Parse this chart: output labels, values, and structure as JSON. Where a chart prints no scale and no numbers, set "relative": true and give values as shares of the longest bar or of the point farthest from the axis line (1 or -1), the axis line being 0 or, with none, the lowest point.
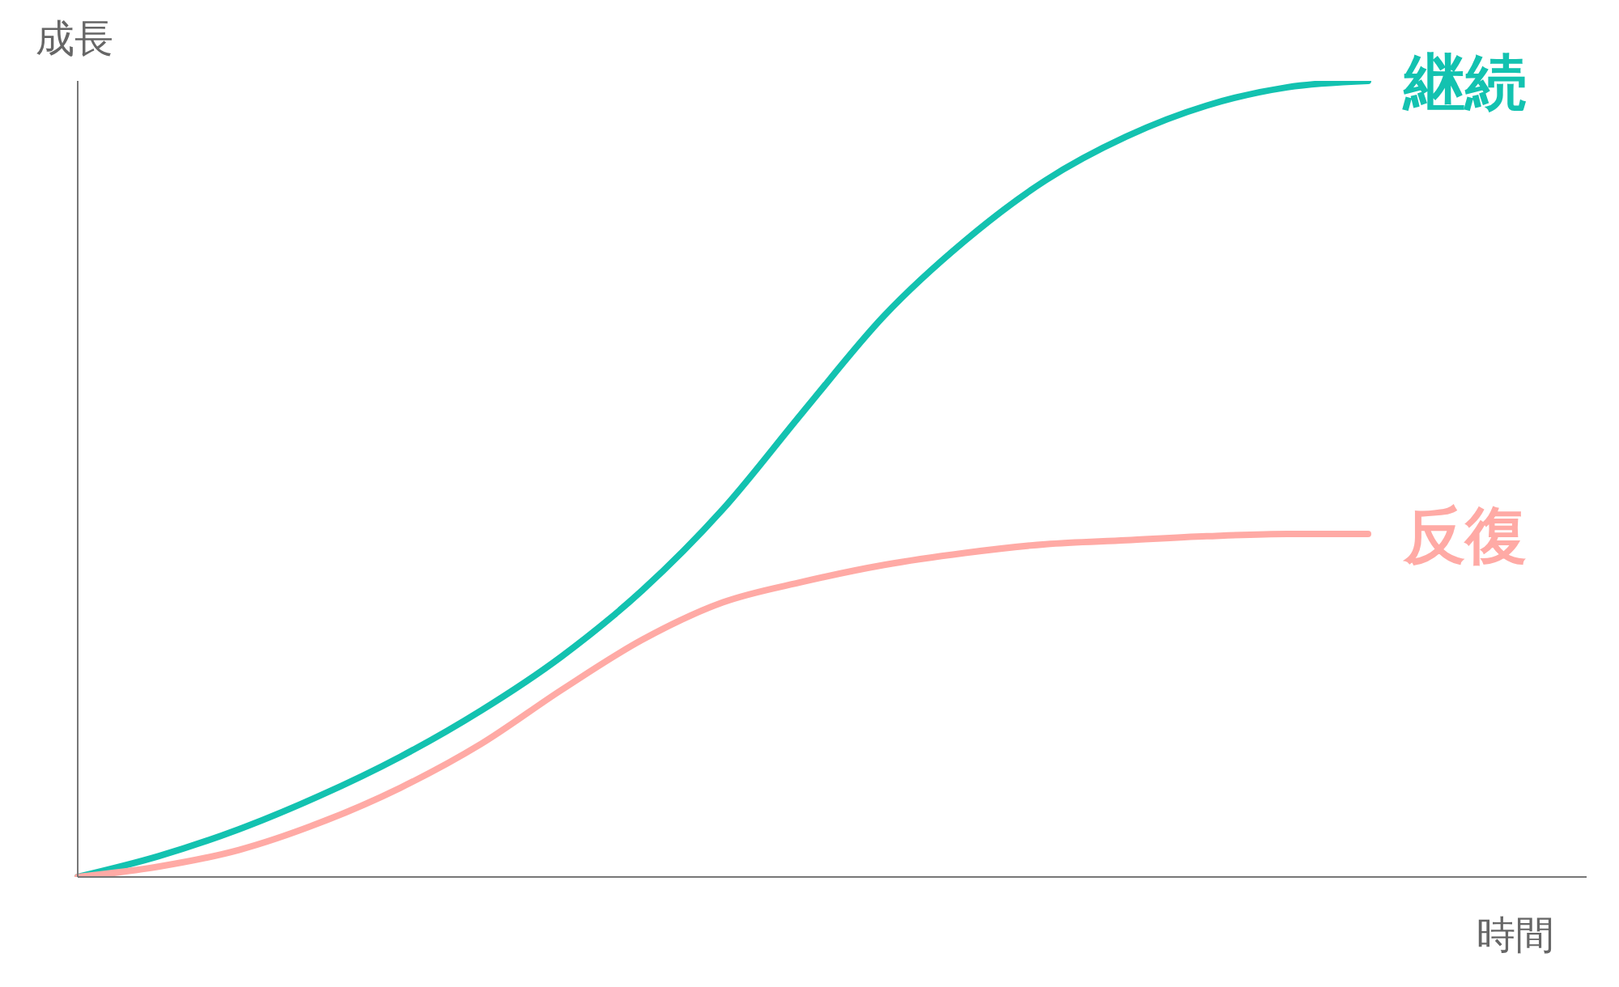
{
  "chart_data": {
    "type": "line",
    "relative": true,
    "xlabel": "時間",
    "ylabel": "成長",
    "categories": [
      null,
      null,
      null,
      null,
      null,
      null,
      null,
      null,
      null,
      null,
      null,
      null,
      null,
      null,
      null,
      null,
      null
    ],
    "series": [
      {
        "name": "継続",
        "color": "#13c2b0",
        "values": [
          0,
          0.026,
          0.06,
          0.102,
          0.151,
          0.209,
          0.277,
          0.36,
          0.462,
          0.585,
          0.705,
          0.799,
          0.875,
          0.93,
          0.969,
          0.992,
          1
        ]
      },
      {
        "name": "反復",
        "color": "#ffaaa5",
        "values": [
          0,
          0.013,
          0.034,
          0.068,
          0.112,
          0.167,
          0.235,
          0.298,
          0.345,
          0.371,
          0.392,
          0.407,
          0.418,
          0.423,
          0.428,
          0.431,
          0.431
        ]
      }
    ]
  }
}
